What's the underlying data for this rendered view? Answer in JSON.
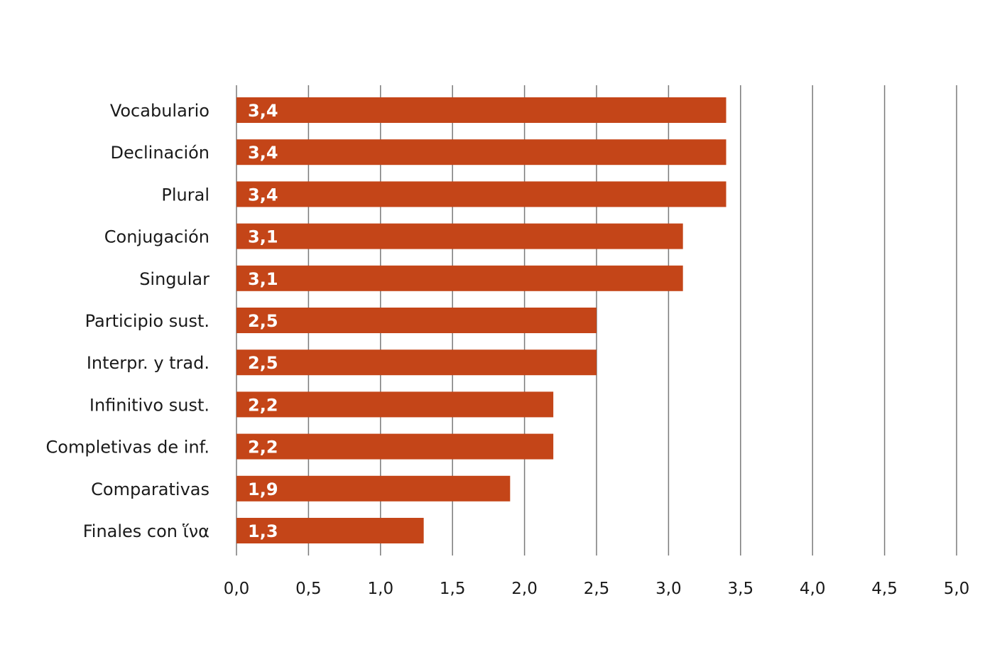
{
  "chart_data": {
    "type": "bar",
    "orientation": "horizontal",
    "title": "",
    "xlabel": "",
    "ylabel": "",
    "categories": [
      "Vocabulario",
      "Declinación",
      "Plural",
      "Conjugación",
      "Singular",
      "Participio sust.",
      "Interpr. y trad.",
      "Infinitivo sust.",
      "Completivas de inf.",
      "Comparativas",
      "Finales con ἵνα"
    ],
    "values": [
      3.4,
      3.4,
      3.4,
      3.1,
      3.1,
      2.5,
      2.5,
      2.2,
      2.2,
      1.9,
      1.3
    ],
    "value_labels": [
      "3,4",
      "3,4",
      "3,4",
      "3,1",
      "3,1",
      "2,5",
      "2,5",
      "2,2",
      "2,2",
      "1,9",
      "1,3"
    ],
    "xlim": [
      0,
      5
    ],
    "x_ticks": [
      0,
      0.5,
      1,
      1.5,
      2,
      2.5,
      3,
      3.5,
      4,
      4.5,
      5
    ],
    "x_tick_labels": [
      "0,0",
      "0,5",
      "1,0",
      "1,5",
      "2,0",
      "2,5",
      "3,0",
      "3,5",
      "4,0",
      "4,5",
      "5,0"
    ],
    "grid": true,
    "legend": "none",
    "bar_color": "#c44518"
  }
}
